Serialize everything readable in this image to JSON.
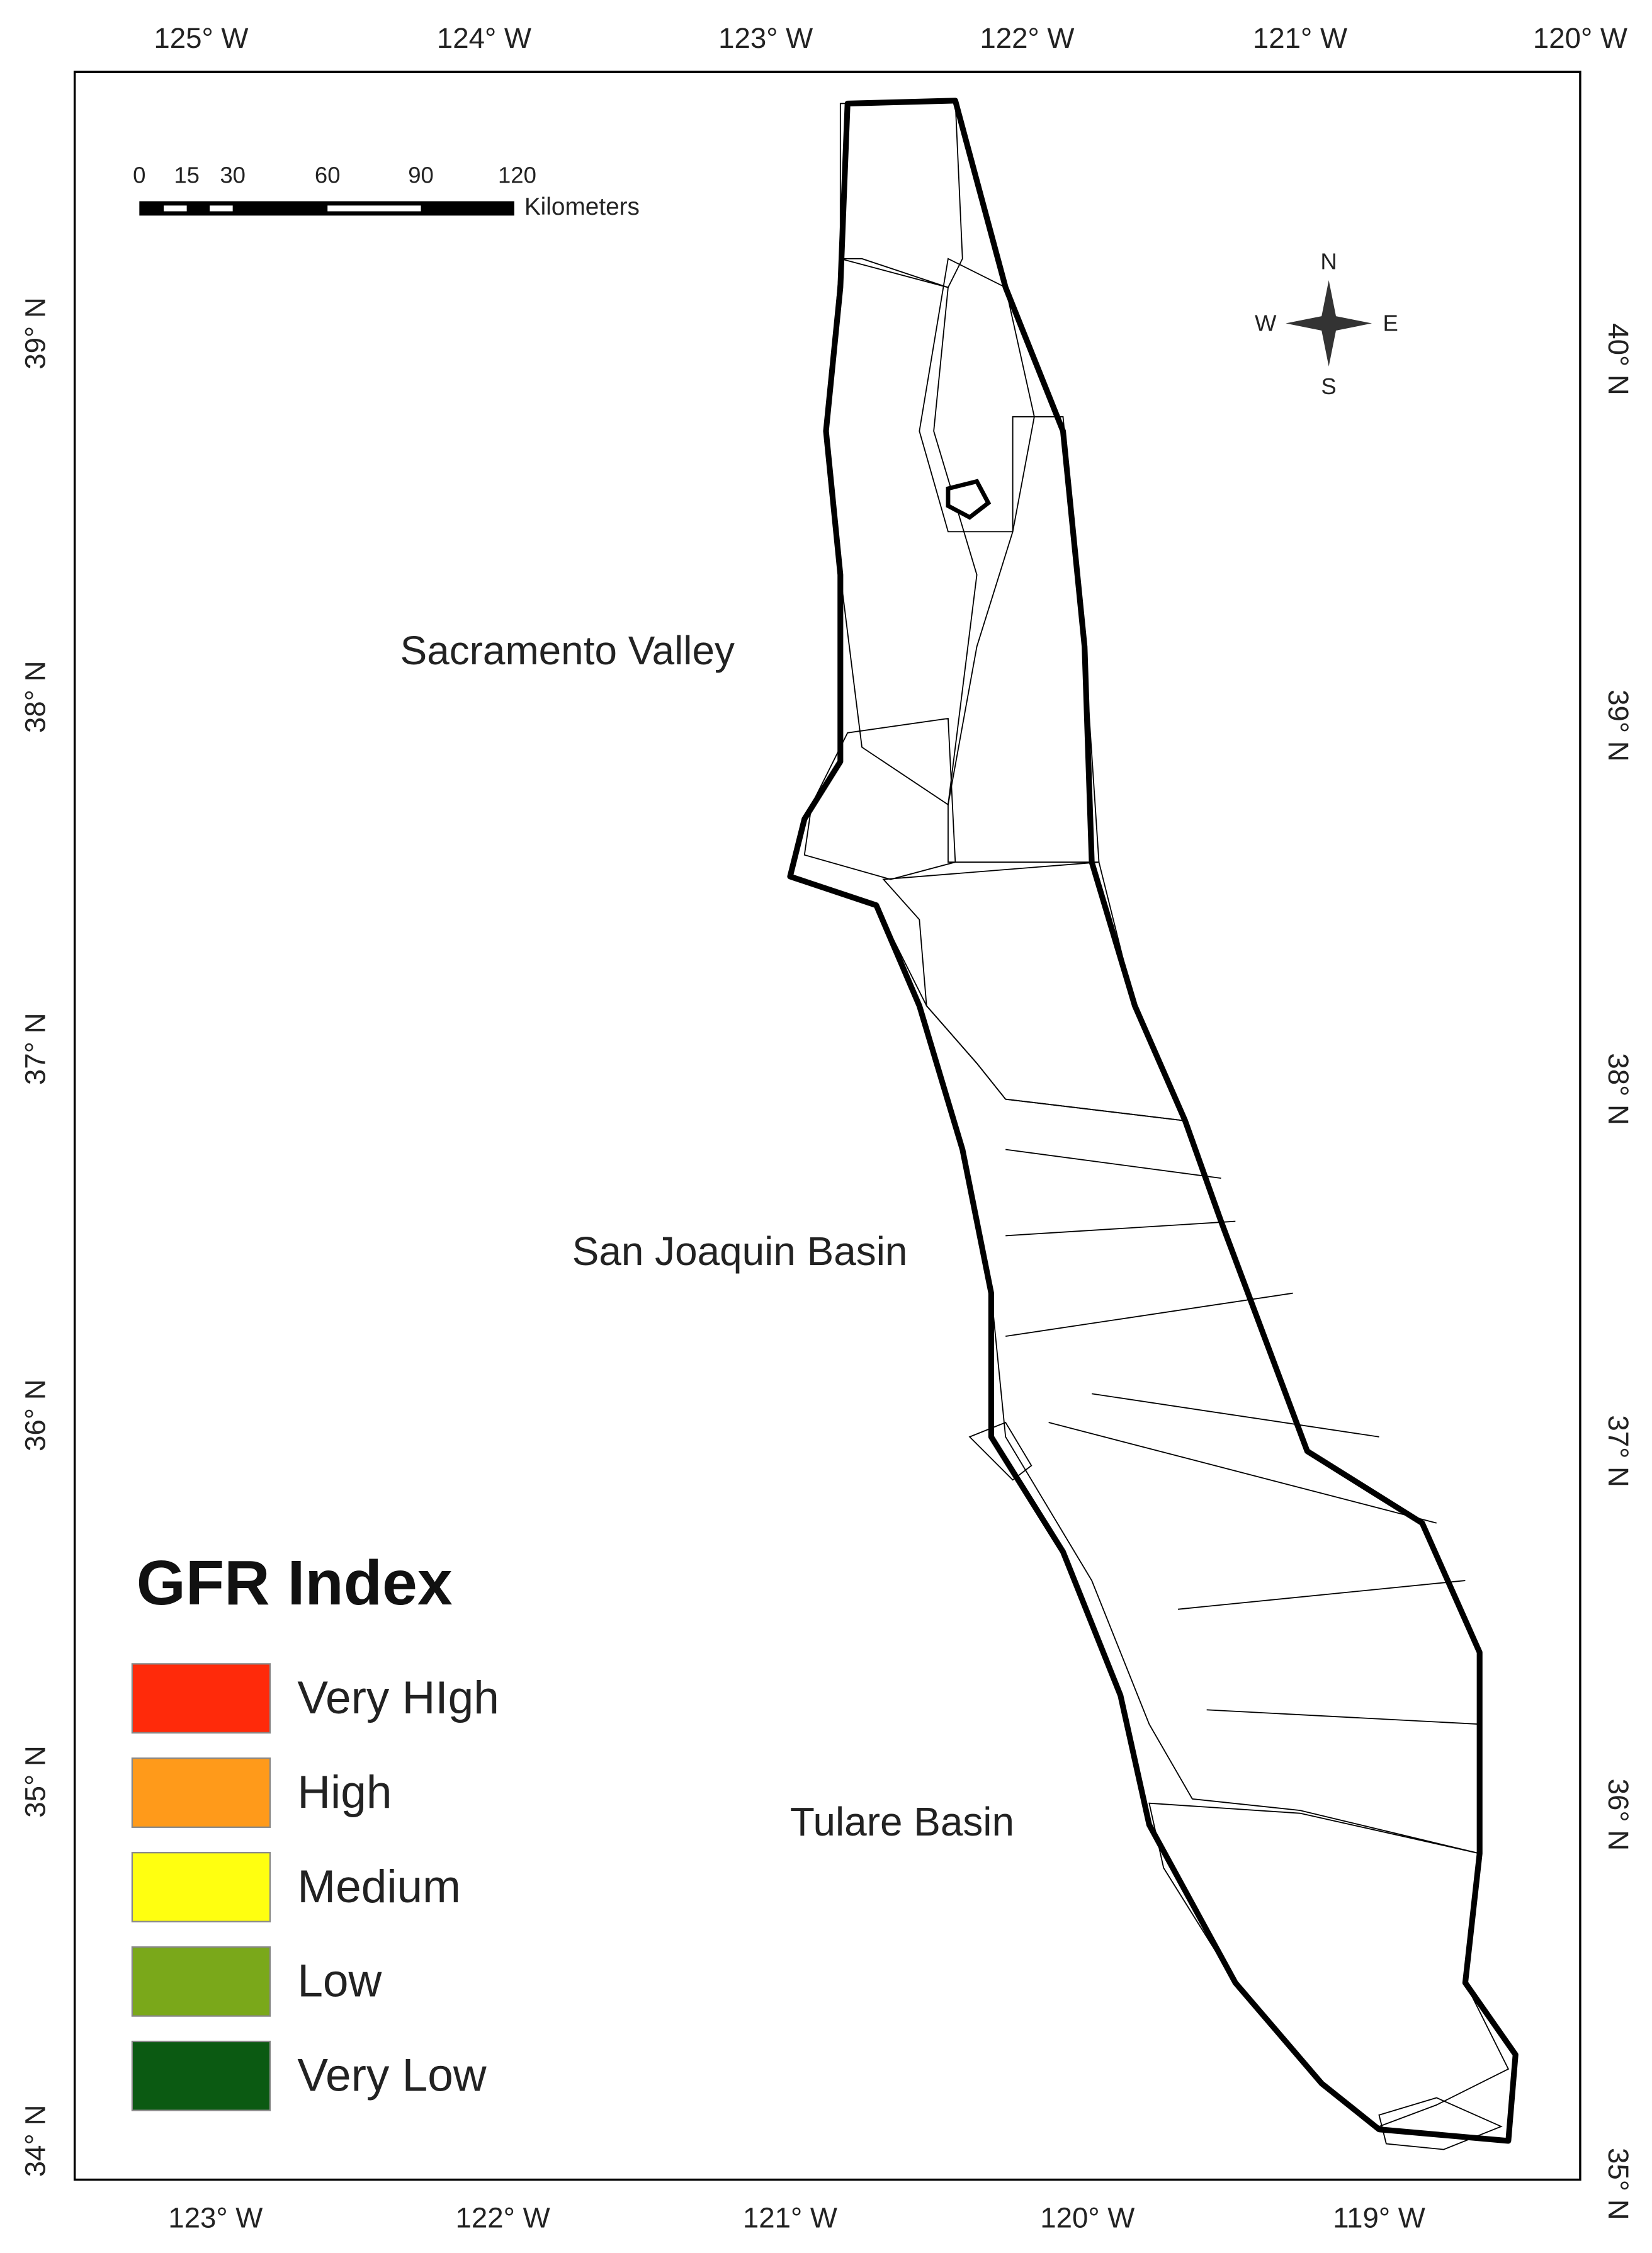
{
  "axes": {
    "top": [
      "125° W",
      "124° W",
      "123° W",
      "122° W",
      "121° W",
      "120° W"
    ],
    "bottom": [
      "123° W",
      "122° W",
      "121° W",
      "120° W",
      "119° W"
    ],
    "left": [
      "39° N",
      "38° N",
      "37° N",
      "36° N",
      "35° N",
      "34° N"
    ],
    "right": [
      "40° N",
      "39° N",
      "38° N",
      "37° N",
      "36° N",
      "35° N"
    ]
  },
  "scale_bar": {
    "ticks": [
      "0",
      "15",
      "30",
      "60",
      "90",
      "120"
    ],
    "unit": "Kilometers"
  },
  "compass": {
    "n": "N",
    "s": "S",
    "w": "W",
    "e": "E"
  },
  "regions": [
    "Sacramento Valley",
    "San Joaquin Basin",
    "Tulare Basin"
  ],
  "legend": {
    "title": "GFR Index",
    "items": [
      {
        "label": "Very HIgh",
        "color": "#ff2a0a"
      },
      {
        "label": "High",
        "color": "#ff9a1a"
      },
      {
        "label": "Medium",
        "color": "#ffff10"
      },
      {
        "label": "Low",
        "color": "#7aa81a"
      },
      {
        "label": "Very Low",
        "color": "#0b5a12"
      }
    ]
  }
}
